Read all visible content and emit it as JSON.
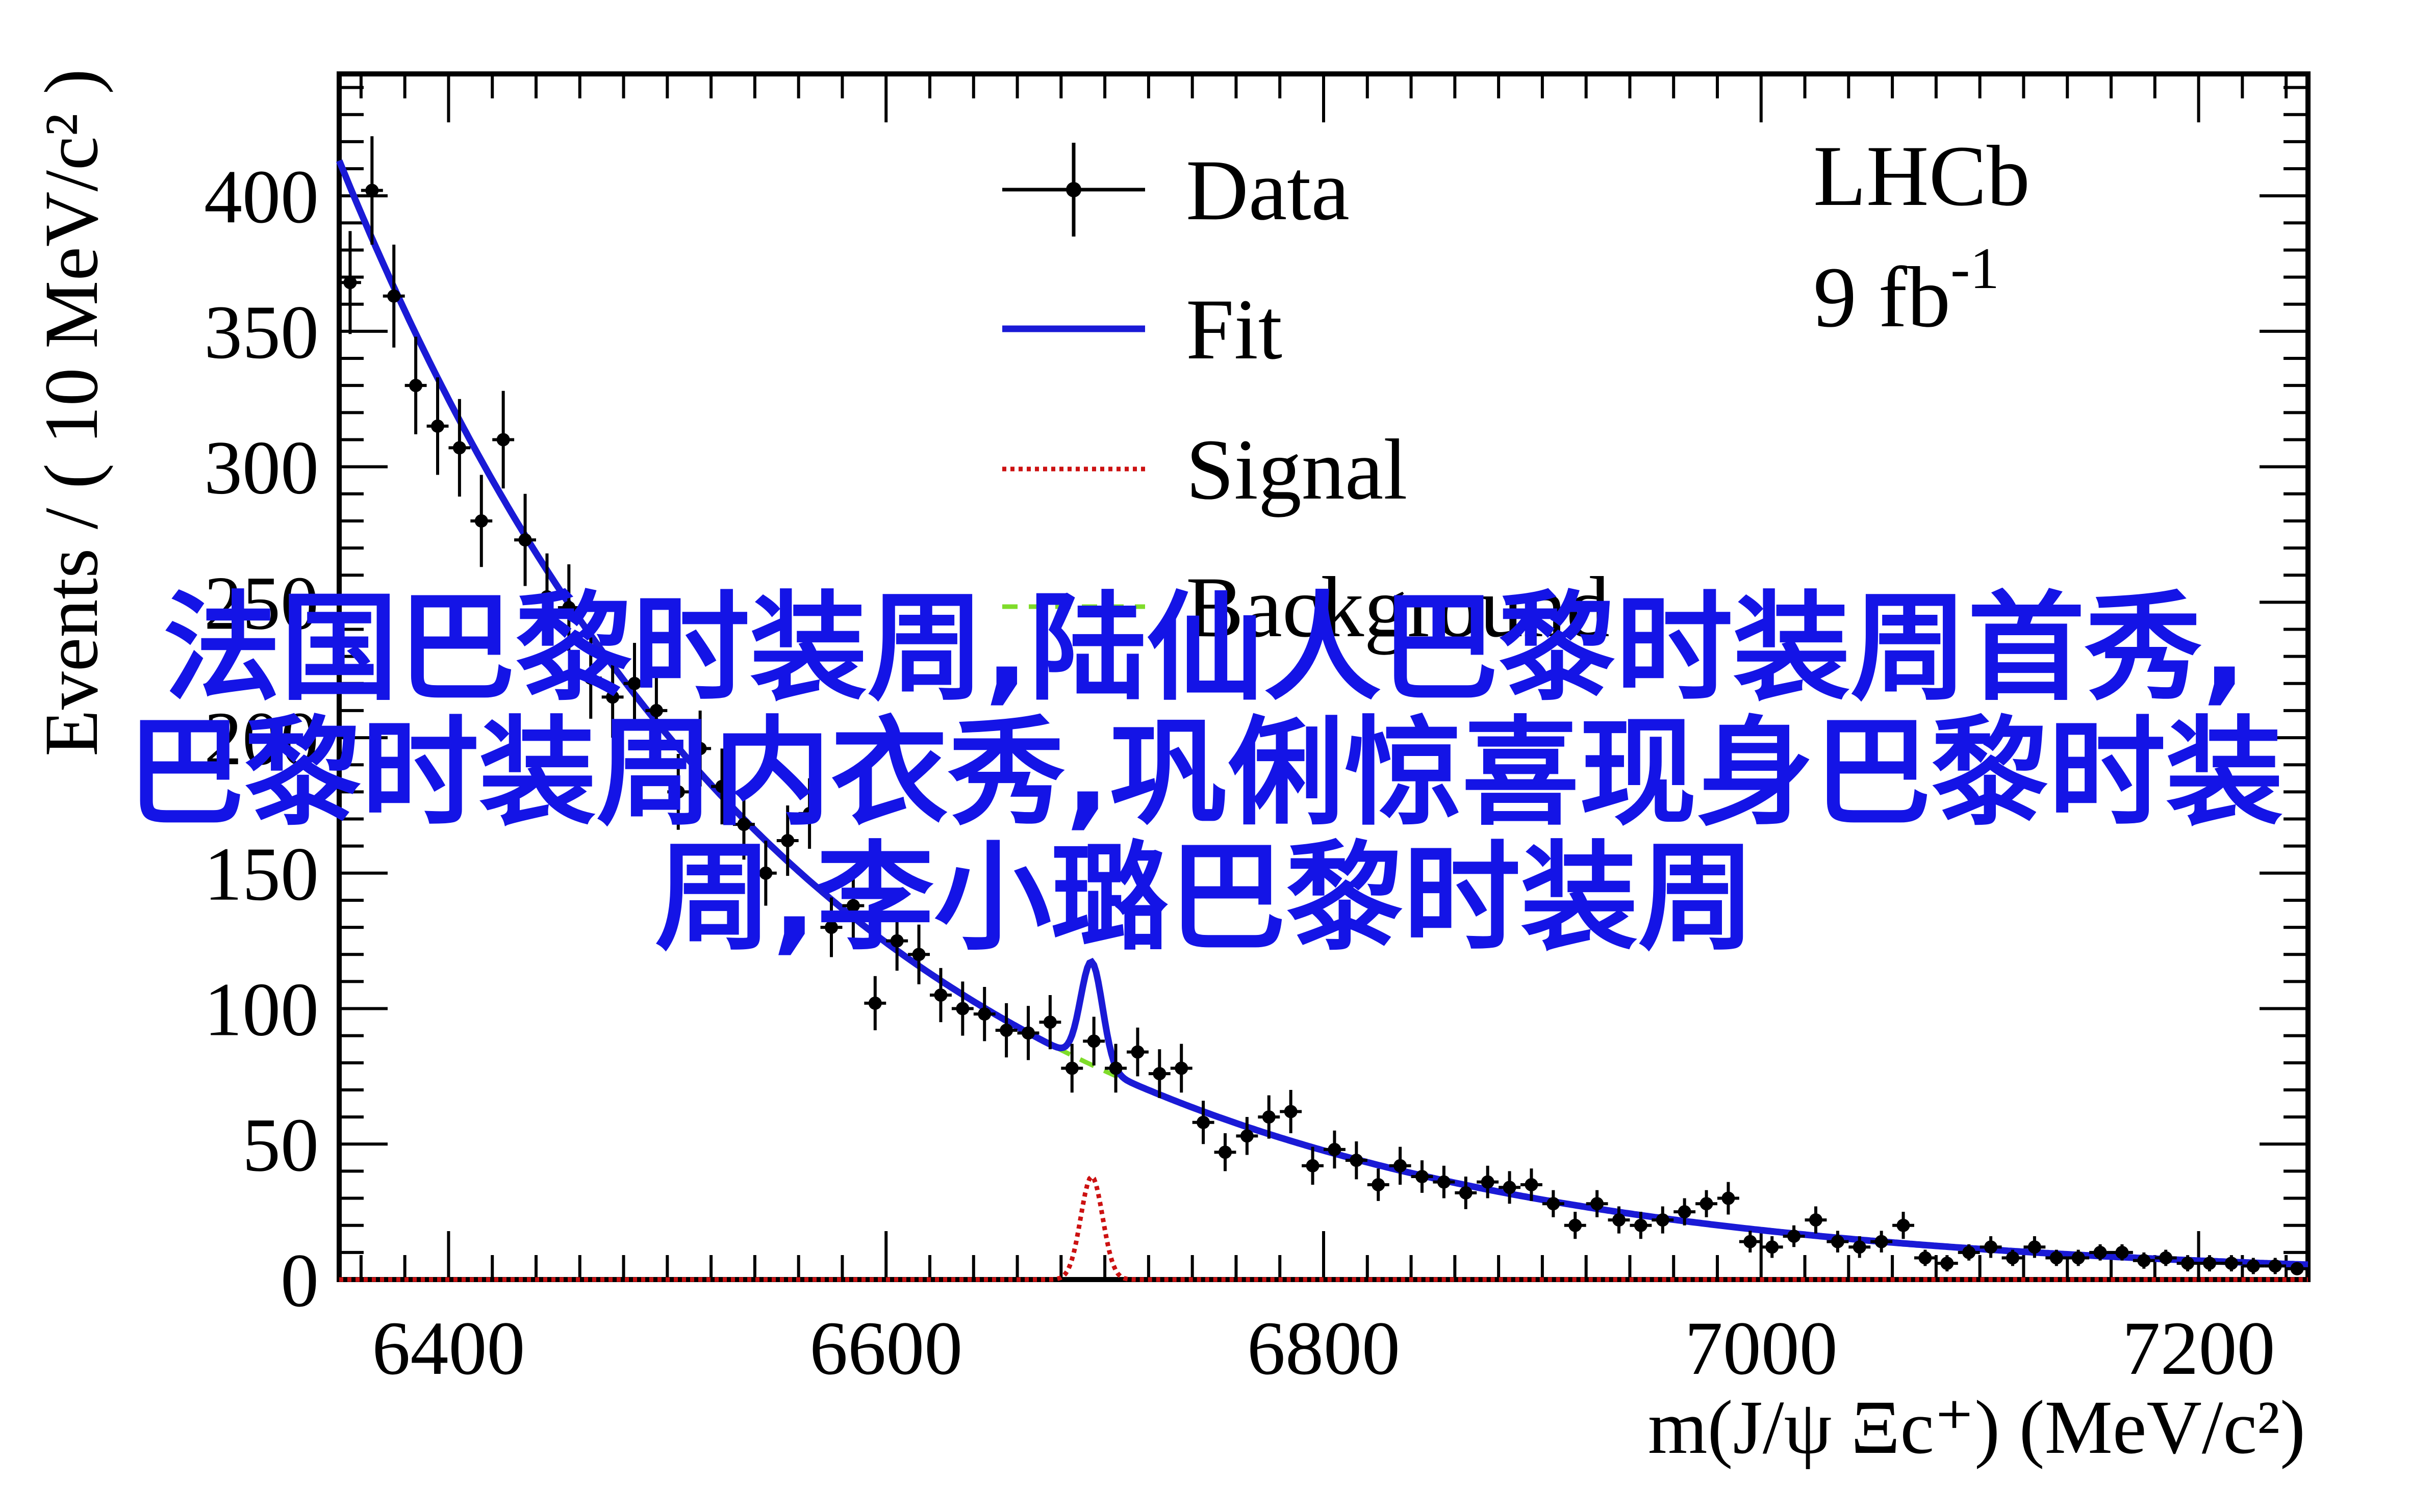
{
  "chart_data": {
    "type": "scatter",
    "xlabel": "m(J/ψ Ξc⁺) (MeV/c²)",
    "ylabel": "Events / ( 10 MeV/c² )",
    "xlim": [
      6350,
      7250
    ],
    "ylim": [
      0,
      445
    ],
    "xticks": [
      "6400",
      "6600",
      "6800",
      "7000",
      "7200"
    ],
    "yticks": [
      "0",
      "50",
      "100",
      "150",
      "200",
      "250",
      "300",
      "350",
      "400"
    ],
    "experiment": "LHCb",
    "luminosity": "9 fb",
    "luminosity_exp": "-1",
    "legend": {
      "placement": "top-center",
      "entries": [
        {
          "label": "Data",
          "style": "errorbar",
          "color": "#000000"
        },
        {
          "label": "Fit",
          "style": "line",
          "color": "#1a1ad6"
        },
        {
          "label": "Signal",
          "style": "dotted",
          "color": "#cc1111"
        },
        {
          "label": "Background",
          "style": "dashed",
          "color": "#7fdc2a"
        }
      ]
    },
    "series": [
      {
        "name": "Data",
        "x": [
          6355,
          6365,
          6375,
          6385,
          6395,
          6405,
          6415,
          6425,
          6435,
          6445,
          6455,
          6465,
          6475,
          6485,
          6495,
          6505,
          6515,
          6525,
          6535,
          6545,
          6555,
          6565,
          6575,
          6585,
          6595,
          6605,
          6615,
          6625,
          6635,
          6645,
          6655,
          6665,
          6675,
          6685,
          6695,
          6705,
          6715,
          6725,
          6735,
          6745,
          6755,
          6765,
          6775,
          6785,
          6795,
          6805,
          6815,
          6825,
          6835,
          6845,
          6855,
          6865,
          6875,
          6885,
          6895,
          6905,
          6915,
          6925,
          6935,
          6945,
          6955,
          6965,
          6975,
          6985,
          6995,
          7005,
          7015,
          7025,
          7035,
          7045,
          7055,
          7065,
          7075,
          7085,
          7095,
          7105,
          7115,
          7125,
          7135,
          7145,
          7155,
          7165,
          7175,
          7185,
          7195,
          7205,
          7215,
          7225,
          7235,
          7245
        ],
        "y": [
          368,
          402,
          363,
          330,
          315,
          307,
          280,
          310,
          273,
          252,
          248,
          222,
          215,
          220,
          210,
          180,
          196,
          182,
          168,
          150,
          162,
          172,
          130,
          138,
          102,
          125,
          120,
          105,
          100,
          98,
          92,
          91,
          95,
          78,
          88,
          78,
          84,
          76,
          78,
          58,
          47,
          53,
          60,
          62,
          42,
          48,
          44,
          35,
          42,
          38,
          36,
          32,
          36,
          34,
          35,
          28,
          20,
          28,
          22,
          20,
          22,
          25,
          28,
          30,
          14,
          12,
          16,
          22,
          14,
          12,
          14,
          20,
          8,
          6,
          10,
          12,
          8,
          12,
          8,
          8,
          10,
          10,
          7,
          8,
          6,
          6,
          6,
          5,
          5,
          4
        ],
        "yerr": [
          19,
          20,
          19,
          18,
          18,
          18,
          17,
          18,
          17,
          16,
          16,
          15,
          15,
          15,
          15,
          14,
          14,
          14,
          13,
          12,
          13,
          13,
          11,
          12,
          10,
          11,
          11,
          10,
          10,
          10,
          10,
          10,
          10,
          9,
          9,
          9,
          9,
          9,
          9,
          8,
          7,
          7,
          8,
          8,
          7,
          7,
          7,
          6,
          7,
          6,
          6,
          6,
          6,
          6,
          6,
          5,
          5,
          5,
          5,
          5,
          5,
          5,
          5,
          6,
          4,
          4,
          4,
          5,
          4,
          4,
          4,
          5,
          3,
          3,
          3,
          4,
          3,
          4,
          3,
          3,
          3,
          3,
          3,
          3,
          3,
          3,
          3,
          3,
          3,
          2
        ]
      },
      {
        "name": "Fit",
        "model": "background + signal"
      },
      {
        "name": "Signal",
        "peak_x": 6694,
        "peak_y": 38,
        "width_sigma": 5
      },
      {
        "name": "Background",
        "model": "exponential",
        "y_at_6350": 413,
        "slope": 0.0048
      }
    ]
  },
  "watermark": {
    "lines": [
      "法国巴黎时装周,陆仙人巴黎时装周首秀,",
      "巴黎时装周内衣秀,巩俐惊喜现身巴黎时装",
      "周,李小璐巴黎时装周"
    ],
    "color": "#1414e6"
  }
}
